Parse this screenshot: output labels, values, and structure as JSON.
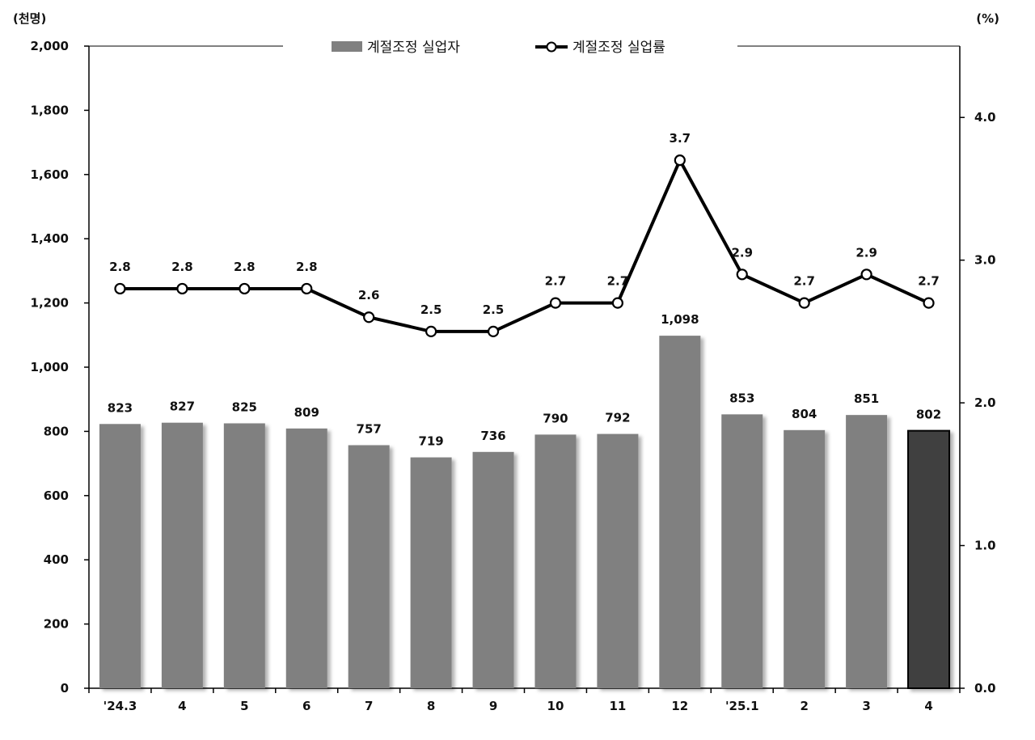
{
  "chart_data": {
    "type": "bar",
    "categories": [
      "'24.3",
      "4",
      "5",
      "6",
      "7",
      "8",
      "9",
      "10",
      "11",
      "12",
      "'25.1",
      "2",
      "3",
      "4"
    ],
    "left_axis": {
      "unit_label": "(천명)",
      "ylim": [
        0,
        2000
      ],
      "ticks": [
        0,
        200,
        400,
        600,
        800,
        1000,
        1200,
        1400,
        1600,
        1800,
        2000
      ],
      "tick_labels": [
        "0",
        "200",
        "400",
        "600",
        "800",
        "1,000",
        "1,200",
        "1,400",
        "1,600",
        "1,800",
        "2,000"
      ]
    },
    "right_axis": {
      "unit_label": "(%)",
      "ylim": [
        0,
        4.5
      ],
      "ticks": [
        0,
        1,
        2,
        3,
        4
      ],
      "tick_labels": [
        "0.0",
        "1.0",
        "2.0",
        "3.0",
        "4.0"
      ]
    },
    "series": [
      {
        "name": "계절조정 실업자",
        "type": "bar",
        "axis": "left",
        "values": [
          823,
          827,
          825,
          809,
          757,
          719,
          736,
          790,
          792,
          1098,
          853,
          804,
          851,
          802
        ],
        "labels": [
          "823",
          "827",
          "825",
          "809",
          "757",
          "719",
          "736",
          "790",
          "792",
          "1,098",
          "853",
          "804",
          "851",
          "802"
        ],
        "color": "#808080",
        "highlight_color": "#404040",
        "highlight_index": 13
      },
      {
        "name": "계절조정 실업률",
        "type": "line",
        "axis": "right",
        "values": [
          2.8,
          2.8,
          2.8,
          2.8,
          2.6,
          2.5,
          2.5,
          2.7,
          2.7,
          3.7,
          2.9,
          2.7,
          2.9,
          2.7
        ],
        "labels": [
          "2.8",
          "2.8",
          "2.8",
          "2.8",
          "2.6",
          "2.5",
          "2.5",
          "2.7",
          "2.7",
          "3.7",
          "2.9",
          "2.7",
          "2.9",
          "2.7"
        ],
        "color": "#000000"
      }
    ],
    "legend_placement": "top-center",
    "grid": false
  }
}
